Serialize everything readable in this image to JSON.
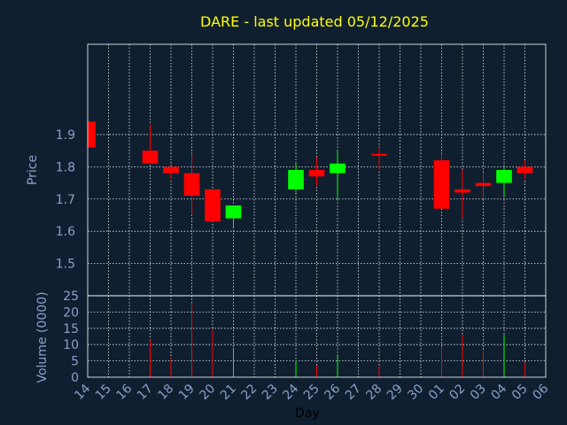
{
  "chart_data": {
    "type": "candlestick",
    "title": "DARE - last updated 05/12/2025",
    "xlabel": "Day",
    "price_panel": {
      "ylabel": "Price",
      "ylim": [
        1.4,
        2.18
      ],
      "yticks": [
        "1.5",
        "1.6",
        "1.7",
        "1.8",
        "1.9"
      ]
    },
    "volume_panel": {
      "ylabel": "Volume (0000)",
      "ylim": [
        0,
        25
      ],
      "yticks": [
        "0",
        "5",
        "10",
        "15",
        "20",
        "25"
      ]
    },
    "categories": [
      "14",
      "15",
      "16",
      "17",
      "18",
      "19",
      "20",
      "21",
      "22",
      "23",
      "24",
      "25",
      "26",
      "27",
      "28",
      "29",
      "30",
      "01",
      "02",
      "03",
      "04",
      "05",
      "06"
    ],
    "candles": [
      {
        "day": "14",
        "open": 1.94,
        "high": 1.94,
        "low": 1.86,
        "close": 1.86,
        "volume": 0
      },
      {
        "day": "17",
        "open": 1.85,
        "high": 1.93,
        "low": 1.81,
        "close": 1.81,
        "volume": 11.5
      },
      {
        "day": "18",
        "open": 1.8,
        "high": 1.8,
        "low": 1.76,
        "close": 1.78,
        "volume": 6
      },
      {
        "day": "19",
        "open": 1.78,
        "high": 1.84,
        "low": 1.65,
        "close": 1.71,
        "volume": 22.5
      },
      {
        "day": "20",
        "open": 1.73,
        "high": 1.73,
        "low": 1.63,
        "close": 1.63,
        "volume": 14.5
      },
      {
        "day": "21",
        "open": 1.64,
        "high": 1.68,
        "low": 1.61,
        "close": 1.68,
        "volume": 9
      },
      {
        "day": "24",
        "open": 1.73,
        "high": 1.81,
        "low": 1.72,
        "close": 1.79,
        "volume": 5
      },
      {
        "day": "25",
        "open": 1.79,
        "high": 1.83,
        "low": 1.74,
        "close": 1.77,
        "volume": 3.5
      },
      {
        "day": "26",
        "open": 1.78,
        "high": 1.85,
        "low": 1.7,
        "close": 1.81,
        "volume": 6.5
      },
      {
        "day": "28",
        "open": 1.84,
        "high": 1.86,
        "low": 1.79,
        "close": 1.84,
        "volume": 3.5
      },
      {
        "day": "01",
        "open": 1.82,
        "high": 1.84,
        "low": 1.67,
        "close": 1.67,
        "volume": 9.5
      },
      {
        "day": "02",
        "open": 1.73,
        "high": 1.79,
        "low": 1.64,
        "close": 1.72,
        "volume": 13
      },
      {
        "day": "03",
        "open": 1.75,
        "high": 1.78,
        "low": 1.7,
        "close": 1.74,
        "volume": 8
      },
      {
        "day": "04",
        "open": 1.75,
        "high": 1.8,
        "low": 1.71,
        "close": 1.79,
        "volume": 13
      },
      {
        "day": "05",
        "open": 1.8,
        "high": 1.82,
        "low": 1.76,
        "close": 1.78,
        "volume": 4.5
      }
    ],
    "colors": {
      "up": "#00ff00",
      "down": "#ff0000",
      "background": "#0f1f30",
      "plot_background": "#0f1f30",
      "grid": "#ffffff",
      "text": "#8aa0c8",
      "title": "#ffff00"
    },
    "grid": true
  }
}
